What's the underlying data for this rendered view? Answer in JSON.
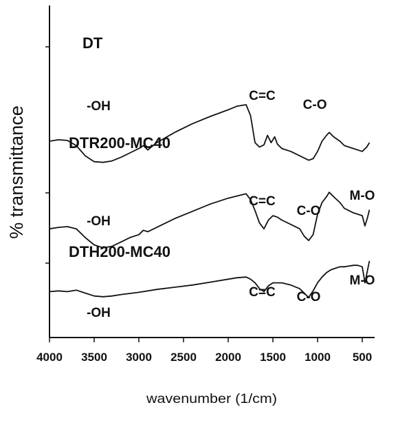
{
  "chart_data": {
    "type": "line",
    "xlabel": "wavenumber (1/cm)",
    "ylabel": "% transmittance",
    "xlim": [
      4000,
      400
    ],
    "x_reversed": true,
    "xticks": [
      4000,
      3500,
      3000,
      2500,
      2000,
      1500,
      1000,
      500
    ],
    "y_values_relative": true,
    "grid": false,
    "series": [
      {
        "name": "DT",
        "color": "#111111",
        "offset": 2.0,
        "points": [
          [
            4000,
            0.5
          ],
          [
            3900,
            0.52
          ],
          [
            3800,
            0.51
          ],
          [
            3700,
            0.44
          ],
          [
            3600,
            0.3
          ],
          [
            3500,
            0.22
          ],
          [
            3400,
            0.21
          ],
          [
            3300,
            0.23
          ],
          [
            3200,
            0.28
          ],
          [
            3100,
            0.34
          ],
          [
            3000,
            0.4
          ],
          [
            2950,
            0.44
          ],
          [
            2900,
            0.38
          ],
          [
            2800,
            0.48
          ],
          [
            2600,
            0.62
          ],
          [
            2400,
            0.74
          ],
          [
            2200,
            0.84
          ],
          [
            2000,
            0.93
          ],
          [
            1900,
            0.98
          ],
          [
            1800,
            1.0
          ],
          [
            1750,
            0.85
          ],
          [
            1700,
            0.48
          ],
          [
            1650,
            0.42
          ],
          [
            1600,
            0.45
          ],
          [
            1560,
            0.58
          ],
          [
            1520,
            0.48
          ],
          [
            1480,
            0.56
          ],
          [
            1450,
            0.46
          ],
          [
            1400,
            0.4
          ],
          [
            1300,
            0.36
          ],
          [
            1200,
            0.3
          ],
          [
            1100,
            0.24
          ],
          [
            1050,
            0.26
          ],
          [
            1000,
            0.36
          ],
          [
            950,
            0.5
          ],
          [
            900,
            0.58
          ],
          [
            870,
            0.62
          ],
          [
            820,
            0.56
          ],
          [
            750,
            0.5
          ],
          [
            700,
            0.44
          ],
          [
            600,
            0.4
          ],
          [
            500,
            0.36
          ],
          [
            450,
            0.42
          ],
          [
            420,
            0.48
          ]
        ]
      },
      {
        "name": "DTR200-MC40",
        "color": "#111111",
        "offset": 1.0,
        "points": [
          [
            4000,
            0.3
          ],
          [
            3900,
            0.32
          ],
          [
            3800,
            0.33
          ],
          [
            3700,
            0.3
          ],
          [
            3600,
            0.18
          ],
          [
            3500,
            0.08
          ],
          [
            3400,
            0.04
          ],
          [
            3300,
            0.06
          ],
          [
            3200,
            0.12
          ],
          [
            3100,
            0.18
          ],
          [
            3000,
            0.22
          ],
          [
            2950,
            0.28
          ],
          [
            2900,
            0.26
          ],
          [
            2800,
            0.32
          ],
          [
            2600,
            0.44
          ],
          [
            2400,
            0.54
          ],
          [
            2200,
            0.64
          ],
          [
            2000,
            0.72
          ],
          [
            1900,
            0.75
          ],
          [
            1800,
            0.78
          ],
          [
            1750,
            0.7
          ],
          [
            1700,
            0.55
          ],
          [
            1650,
            0.38
          ],
          [
            1600,
            0.3
          ],
          [
            1550,
            0.42
          ],
          [
            1500,
            0.48
          ],
          [
            1450,
            0.46
          ],
          [
            1400,
            0.42
          ],
          [
            1300,
            0.36
          ],
          [
            1200,
            0.3
          ],
          [
            1150,
            0.2
          ],
          [
            1100,
            0.14
          ],
          [
            1050,
            0.22
          ],
          [
            1000,
            0.5
          ],
          [
            950,
            0.66
          ],
          [
            900,
            0.74
          ],
          [
            870,
            0.8
          ],
          [
            820,
            0.74
          ],
          [
            750,
            0.66
          ],
          [
            700,
            0.58
          ],
          [
            600,
            0.52
          ],
          [
            500,
            0.48
          ],
          [
            470,
            0.34
          ],
          [
            440,
            0.46
          ],
          [
            420,
            0.56
          ]
        ]
      },
      {
        "name": "DTH200-MC40",
        "color": "#111111",
        "offset": 0.0,
        "points": [
          [
            4000,
            0.44
          ],
          [
            3900,
            0.45
          ],
          [
            3800,
            0.44
          ],
          [
            3700,
            0.46
          ],
          [
            3600,
            0.42
          ],
          [
            3500,
            0.38
          ],
          [
            3400,
            0.37
          ],
          [
            3300,
            0.38
          ],
          [
            3200,
            0.4
          ],
          [
            3000,
            0.43
          ],
          [
            2800,
            0.47
          ],
          [
            2600,
            0.5
          ],
          [
            2400,
            0.53
          ],
          [
            2200,
            0.57
          ],
          [
            2000,
            0.61
          ],
          [
            1900,
            0.63
          ],
          [
            1800,
            0.64
          ],
          [
            1750,
            0.61
          ],
          [
            1700,
            0.56
          ],
          [
            1650,
            0.48
          ],
          [
            1600,
            0.44
          ],
          [
            1550,
            0.52
          ],
          [
            1500,
            0.56
          ],
          [
            1400,
            0.56
          ],
          [
            1300,
            0.53
          ],
          [
            1200,
            0.48
          ],
          [
            1150,
            0.42
          ],
          [
            1100,
            0.36
          ],
          [
            1050,
            0.45
          ],
          [
            1000,
            0.56
          ],
          [
            950,
            0.64
          ],
          [
            900,
            0.7
          ],
          [
            850,
            0.74
          ],
          [
            800,
            0.76
          ],
          [
            750,
            0.78
          ],
          [
            700,
            0.78
          ],
          [
            600,
            0.8
          ],
          [
            550,
            0.8
          ],
          [
            500,
            0.78
          ],
          [
            470,
            0.56
          ],
          [
            440,
            0.74
          ],
          [
            420,
            0.86
          ]
        ]
      }
    ],
    "annotations": [
      {
        "text": "DT",
        "series": "DT",
        "role": "title"
      },
      {
        "text": "-OH",
        "series": "DT",
        "x": 3450
      },
      {
        "text": "C=C",
        "series": "DT",
        "x": 1620
      },
      {
        "text": "C-O",
        "series": "DT",
        "x": 1030
      },
      {
        "text": "DTR200-MC40",
        "series": "DTR200-MC40",
        "role": "title"
      },
      {
        "text": "-OH",
        "series": "DTR200-MC40",
        "x": 3450
      },
      {
        "text": "C=C",
        "series": "DTR200-MC40",
        "x": 1620
      },
      {
        "text": "C-O",
        "series": "DTR200-MC40",
        "x": 1100
      },
      {
        "text": "M-O",
        "series": "DTR200-MC40",
        "x": 500
      },
      {
        "text": "DTH200-MC40",
        "series": "DTH200-MC40",
        "role": "title"
      },
      {
        "text": "-OH",
        "series": "DTH200-MC40",
        "x": 3450
      },
      {
        "text": "C=C",
        "series": "DTH200-MC40",
        "x": 1620
      },
      {
        "text": "C-O",
        "series": "DTH200-MC40",
        "x": 1100
      },
      {
        "text": "M-O",
        "series": "DTH200-MC40",
        "x": 500
      }
    ]
  }
}
